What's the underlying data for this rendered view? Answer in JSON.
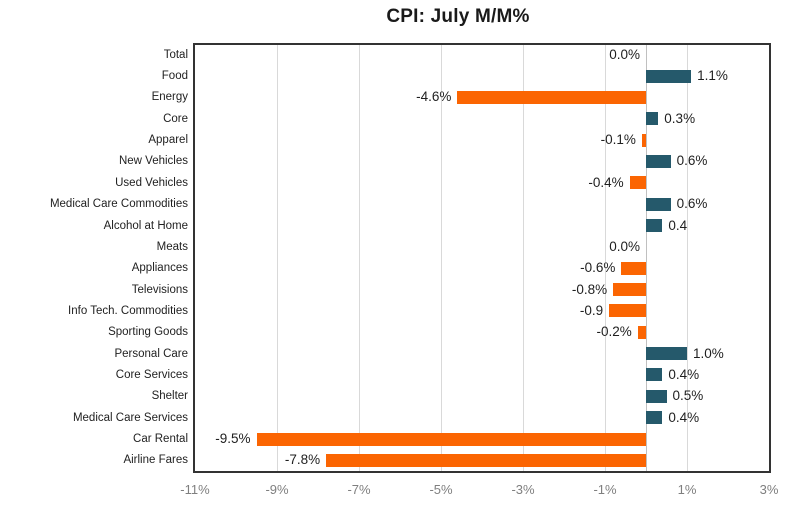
{
  "title": "CPI: July M/M%",
  "chart_data": {
    "type": "bar",
    "orientation": "horizontal",
    "title": "CPI: July M/M%",
    "categories": [
      "Total",
      "Food",
      "Energy",
      "Core",
      "Apparel",
      "New Vehicles",
      "Used Vehicles",
      "Medical Care Commodities",
      "Alcohol at Home",
      "Meats",
      "Appliances",
      "Televisions",
      "Info Tech. Commodities",
      "Sporting Goods",
      "Personal Care",
      "Core Services",
      "Shelter",
      "Medical Care Services",
      "Car Rental",
      "Airline Fares"
    ],
    "values": [
      0.0,
      1.1,
      -4.6,
      0.3,
      -0.1,
      0.6,
      -0.4,
      0.6,
      0.4,
      0.0,
      -0.6,
      -0.8,
      -0.9,
      -0.2,
      1.0,
      0.4,
      0.5,
      0.4,
      -9.5,
      -7.8
    ],
    "value_labels": [
      "0.0%",
      "1.1%",
      "-4.6%",
      "0.3%",
      "-0.1%",
      "0.6%",
      "-0.4%",
      "0.6%",
      "0.4",
      "0.0%",
      "-0.6%",
      "-0.8%",
      "-0.9",
      "-0.2%",
      "1.0%",
      "0.4%",
      "0.5%",
      "0.4%",
      "-9.5%",
      "-7.8%"
    ],
    "xlim": [
      -11,
      3
    ],
    "x_tick_values": [
      -11,
      -9,
      -7,
      -5,
      -3,
      -1,
      1,
      3
    ],
    "x_tick_labels": [
      "-11%",
      "-9%",
      "-7%",
      "-5%",
      "-3%",
      "-1%",
      "1%",
      "3%"
    ],
    "gridlines": true,
    "legend": "none",
    "colors": {
      "positive_bar": "#25596b",
      "negative_bar": "#fb6502",
      "gridline": "#d9d9d9",
      "zero_line": "#c0c0c0",
      "plot_border": "#333333",
      "tick_label": "#7f7f7f",
      "data_label": "#1f1f1f",
      "category_label": "#1f1f1f",
      "title": "#1a1a1a"
    }
  }
}
